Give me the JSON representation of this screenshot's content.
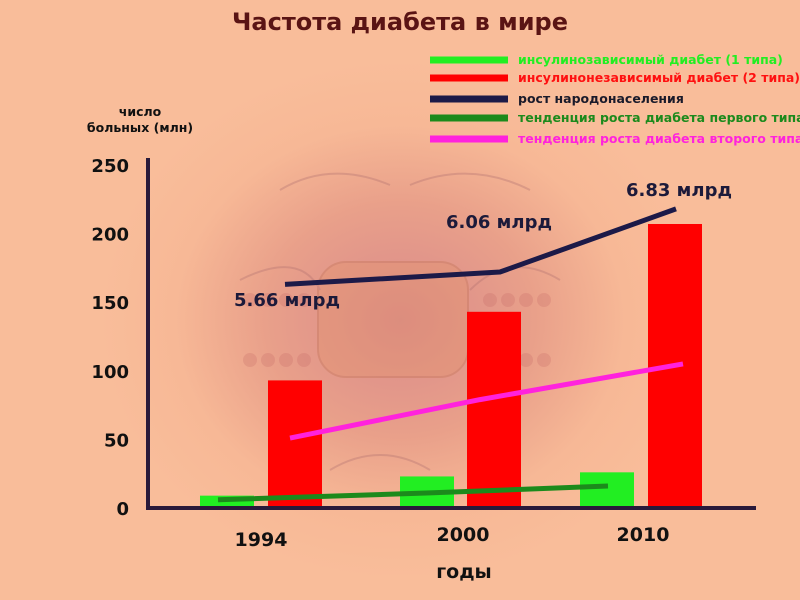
{
  "chart_data": {
    "type": "bar",
    "title": "Частота диабета в мире",
    "ylabel_lines": [
      "число",
      "больных (млн)"
    ],
    "xlabel": "годы",
    "categories": [
      "1994",
      "2000",
      "2010"
    ],
    "ylim": [
      0,
      250
    ],
    "yticks": [
      0,
      50,
      100,
      150,
      200,
      250
    ],
    "legend_position": "top-right",
    "series": [
      {
        "name": "инсулинозависимый диабет (1 типа)",
        "color": "#22ee22",
        "values": [
          9,
          23,
          26
        ]
      },
      {
        "name": "инсулинонезависимый диабет (2 типа)",
        "color": "#ff0000",
        "values": [
          93,
          143,
          207
        ]
      }
    ],
    "lines": [
      {
        "name": "рост народонаселения",
        "color": "#1c1a48",
        "values": [
          163,
          172,
          218
        ]
      },
      {
        "name": "тенденция роста диабета первого типа",
        "color": "#1c8a1c",
        "values": [
          6,
          11,
          16
        ]
      },
      {
        "name": "тенденция роста диабета второго типа",
        "color": "#ff22dd",
        "values": [
          51,
          79,
          105
        ]
      }
    ],
    "annotations": [
      "5.66 млрд",
      "6.06 млрд",
      "6.83 млрд"
    ]
  }
}
